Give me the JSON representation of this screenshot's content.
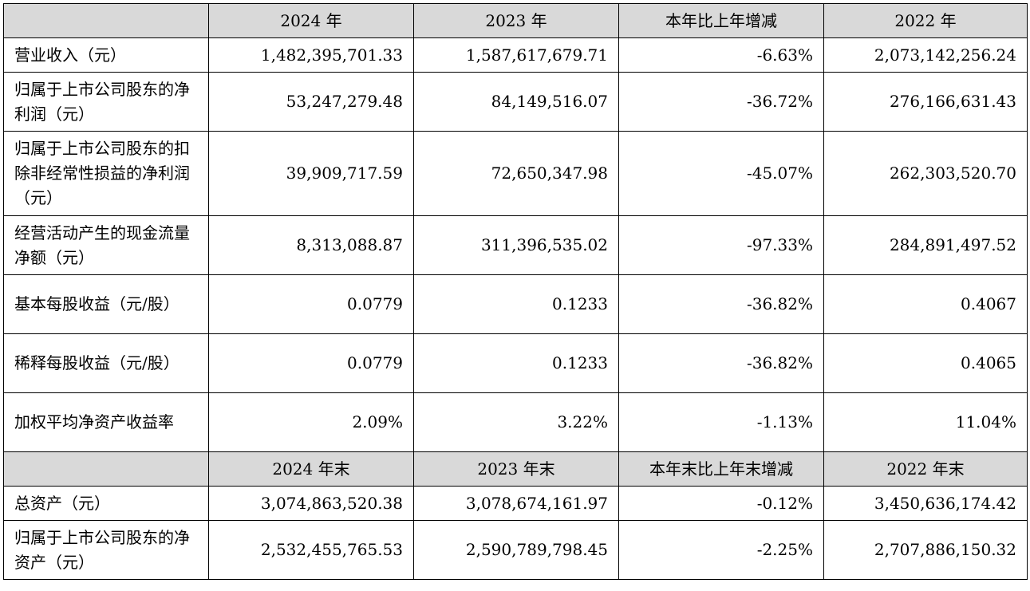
{
  "header_annual": [
    "",
    "2024 年",
    "2023 年",
    "本年比上年增减",
    "2022 年"
  ],
  "rows_annual": [
    {
      "label": "营业收入（元）",
      "values": [
        "1,482,395,701.33",
        "1,587,617,679.71",
        "-6.63%",
        "2,073,142,256.24"
      ]
    },
    {
      "label": "归属于上市公司股东的净利润（元）",
      "values": [
        "53,247,279.48",
        "84,149,516.07",
        "-36.72%",
        "276,166,631.43"
      ]
    },
    {
      "label": "归属于上市公司股东的扣除非经常性损益的净利润（元）",
      "values": [
        "39,909,717.59",
        "72,650,347.98",
        "-45.07%",
        "262,303,520.70"
      ]
    },
    {
      "label": "经营活动产生的现金流量净额（元）",
      "values": [
        "8,313,088.87",
        "311,396,535.02",
        "-97.33%",
        "284,891,497.52"
      ]
    },
    {
      "label": "基本每股收益（元/股）",
      "values": [
        "0.0779",
        "0.1233",
        "-36.82%",
        "0.4067"
      ]
    },
    {
      "label": "稀释每股收益（元/股）",
      "values": [
        "0.0779",
        "0.1233",
        "-36.82%",
        "0.4065"
      ]
    },
    {
      "label": "加权平均净资产收益率",
      "values": [
        "2.09%",
        "3.22%",
        "-1.13%",
        "11.04%"
      ]
    }
  ],
  "header_yearend": [
    "",
    "2024 年末",
    "2023 年末",
    "本年末比上年末增减",
    "2022 年末"
  ],
  "rows_yearend": [
    {
      "label": "总资产（元）",
      "values": [
        "3,074,863,520.38",
        "3,078,674,161.97",
        "-0.12%",
        "3,450,636,174.42"
      ]
    },
    {
      "label": "归属于上市公司股东的净资产（元）",
      "values": [
        "2,532,455,765.53",
        "2,590,789,798.45",
        "-2.25%",
        "2,707,886,150.32"
      ]
    }
  ],
  "colors": {
    "header_shade": "#d9d9d9",
    "border": "#000000"
  }
}
